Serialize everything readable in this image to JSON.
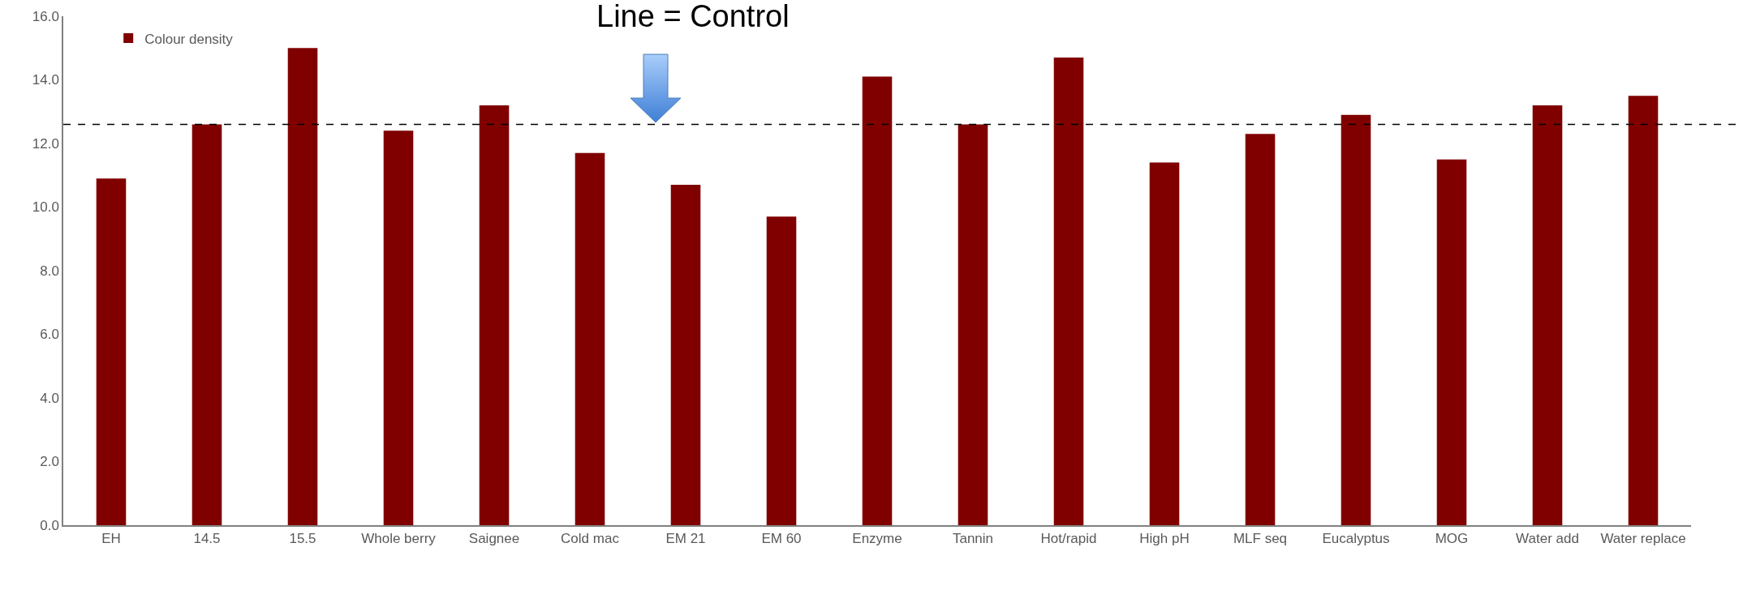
{
  "chart_data": {
    "type": "bar",
    "categories": [
      "EH",
      "14.5",
      "15.5",
      "Whole berry",
      "Saignee",
      "Cold mac",
      "EM 21",
      "EM 60",
      "Enzyme",
      "Tannin",
      "Hot/rapid",
      "High pH",
      "MLF seq",
      "Eucalyptus",
      "MOG",
      "Water add",
      "Water replace"
    ],
    "series": [
      {
        "name": "Colour density",
        "color": "#800000",
        "values": [
          10.9,
          12.6,
          15.0,
          12.4,
          13.2,
          11.7,
          10.7,
          9.7,
          14.1,
          12.6,
          14.7,
          11.4,
          12.3,
          12.9,
          11.5,
          13.2,
          13.5
        ]
      }
    ],
    "ylim": [
      0,
      16
    ],
    "yticks": [
      {
        "value": 0,
        "label": "0.0"
      },
      {
        "value": 2,
        "label": "2.0"
      },
      {
        "value": 4,
        "label": "4.0"
      },
      {
        "value": 6,
        "label": "6.0"
      },
      {
        "value": 8,
        "label": "8.0"
      },
      {
        "value": 10,
        "label": "10.0"
      },
      {
        "value": 12,
        "label": "12.0"
      },
      {
        "value": 14,
        "label": "14.0"
      },
      {
        "value": 16,
        "label": "16.0"
      }
    ],
    "ref_lines": [
      {
        "axis": "y",
        "value": 12.6,
        "color": "#000000",
        "line_style": "dashed",
        "label": "Line = Control"
      }
    ],
    "grid": false,
    "legend": "top left"
  }
}
